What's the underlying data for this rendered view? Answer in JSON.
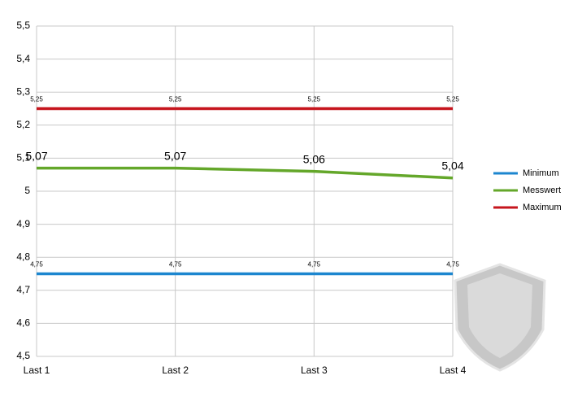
{
  "chart_data": {
    "type": "line",
    "categories": [
      "Last 1",
      "Last 2",
      "Last 3",
      "Last 4"
    ],
    "series": [
      {
        "name": "Minimum",
        "color": "#1c86cf",
        "values": [
          4.75,
          4.75,
          4.75,
          4.75
        ],
        "value_labels": [
          "4,75",
          "4,75",
          "4,75",
          "4,75"
        ]
      },
      {
        "name": "Messwert",
        "color": "#64a72a",
        "values": [
          5.07,
          5.07,
          5.06,
          5.04
        ],
        "value_labels": [
          "5,07",
          "5,07",
          "5,06",
          "5,04"
        ]
      },
      {
        "name": "Maximum",
        "color": "#c6151d",
        "values": [
          5.25,
          5.25,
          5.25,
          5.25
        ],
        "value_labels": [
          "5,25",
          "5,25",
          "5,25",
          "5,25"
        ]
      }
    ],
    "ylim": [
      4.5,
      5.5
    ],
    "yticks": [
      {
        "value": 4.5,
        "label": "4,5"
      },
      {
        "value": 4.6,
        "label": "4,6"
      },
      {
        "value": 4.7,
        "label": "4,7"
      },
      {
        "value": 4.8,
        "label": "4,8"
      },
      {
        "value": 4.9,
        "label": "4,9"
      },
      5,
      {
        "value": 5.1,
        "label": "5,1"
      },
      {
        "value": 5.2,
        "label": "5,2"
      },
      {
        "value": 5.3,
        "label": "5,3"
      },
      {
        "value": 5.4,
        "label": "5,4"
      },
      {
        "value": 5.5,
        "label": "5,5"
      }
    ],
    "grid": true,
    "legend": "right"
  }
}
